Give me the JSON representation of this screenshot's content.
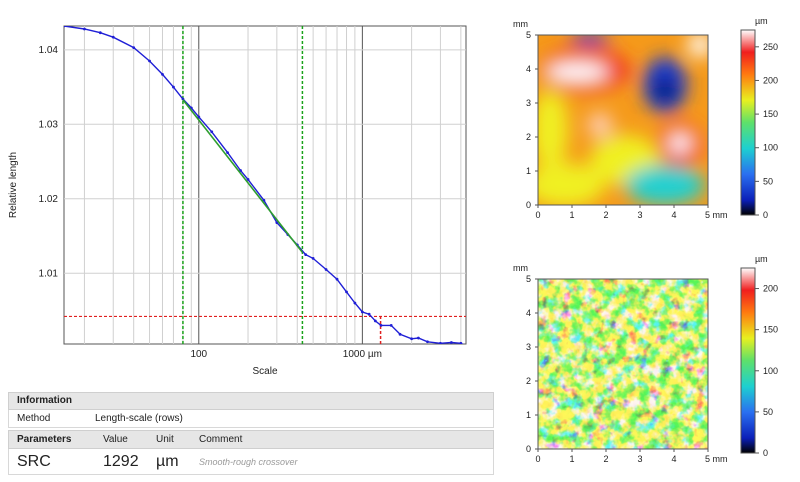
{
  "chart_data": [
    {
      "type": "line",
      "title": "",
      "xlabel": "Scale",
      "ylabel": "Relative length",
      "x_scale": "log",
      "xlim": [
        15,
        4300
      ],
      "ylim": [
        1.0005,
        1.0432
      ],
      "x_ticks": [
        {
          "value": 100,
          "label": "100"
        },
        {
          "value": 1000,
          "label": "1000 µm"
        }
      ],
      "y_ticks": [
        {
          "value": 1.01,
          "label": "1.01"
        },
        {
          "value": 1.02,
          "label": "1.02"
        },
        {
          "value": 1.03,
          "label": "1.03"
        },
        {
          "value": 1.04,
          "label": "1.04"
        }
      ],
      "grid": true,
      "series": [
        {
          "color": "#1f1fd6",
          "x": [
            15,
            20,
            25,
            30,
            40,
            50,
            60,
            70,
            80,
            90,
            100,
            120,
            150,
            180,
            200,
            250,
            300,
            350,
            400,
            450,
            500,
            600,
            700,
            800,
            900,
            1000,
            1100,
            1200,
            1300,
            1500,
            1700,
            2000,
            2200,
            2500,
            3000,
            3500,
            4000,
            4300
          ],
          "y": [
            1.0432,
            1.0428,
            1.0423,
            1.0417,
            1.0403,
            1.0385,
            1.0367,
            1.035,
            1.0334,
            1.0322,
            1.031,
            1.029,
            1.0262,
            1.0238,
            1.0226,
            1.0198,
            1.0168,
            1.0152,
            1.0138,
            1.0125,
            1.012,
            1.0105,
            1.0092,
            1.0075,
            1.006,
            1.0048,
            1.0045,
            1.0036,
            1.003,
            1.003,
            1.0018,
            1.0012,
            1.0013,
            1.0008,
            1.0006,
            1.0007,
            1.0006,
            1.0002
          ]
        },
        {
          "color": "#2e9e2e",
          "x": [
            80,
            430
          ],
          "y": [
            1.0333,
            1.0128
          ]
        }
      ],
      "vlines": [
        {
          "x": 80,
          "color": "#1aa31a",
          "style": "dashed"
        },
        {
          "x": 430,
          "color": "#1aa31a",
          "style": "dashed"
        },
        {
          "x": 1292,
          "color": "#e02020",
          "style": "dashed"
        }
      ],
      "hline": {
        "y": 1.0042,
        "color": "#e02020",
        "style": "dashed"
      }
    },
    {
      "type": "heatmap",
      "x_unit": "mm",
      "y_unit": "mm",
      "x_ticks": [
        "0",
        "1",
        "2",
        "3",
        "4",
        "5 mm"
      ],
      "y_ticks": [
        "0",
        "1",
        "2",
        "3",
        "4",
        "5"
      ],
      "colorbar_unit": "µm",
      "colorbar_ticks": [
        "0",
        "50",
        "100",
        "150",
        "200",
        "250"
      ],
      "colorbar_max": 275
    },
    {
      "type": "heatmap",
      "x_unit": "mm",
      "y_unit": "mm",
      "x_ticks": [
        "0",
        "1",
        "2",
        "3",
        "4",
        "5 mm"
      ],
      "y_ticks": [
        "0",
        "1",
        "2",
        "3",
        "4",
        "5"
      ],
      "colorbar_unit": "µm",
      "colorbar_ticks": [
        "0",
        "50",
        "100",
        "150",
        "200"
      ],
      "colorbar_max": 225
    }
  ],
  "info": {
    "header": "Information",
    "method_label": "Method",
    "method_value": "Length-scale (rows)"
  },
  "params": {
    "header": "Parameters",
    "col_value": "Value",
    "col_unit": "Unit",
    "col_comment": "Comment",
    "name": "SRC",
    "value": "1292",
    "unit": "µm",
    "comment": "Smooth-rough crossover"
  }
}
